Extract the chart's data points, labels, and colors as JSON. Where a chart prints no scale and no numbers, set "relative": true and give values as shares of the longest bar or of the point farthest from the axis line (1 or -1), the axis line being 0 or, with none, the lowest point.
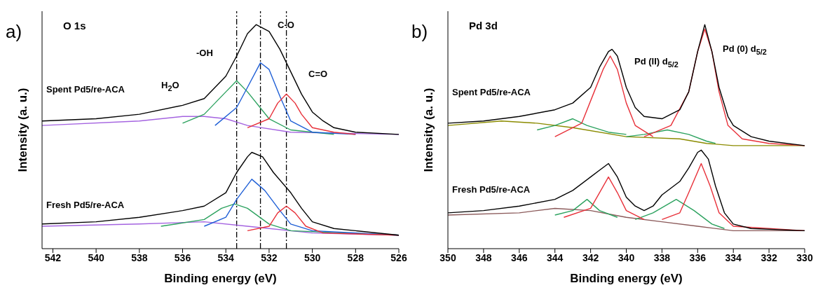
{
  "chart_data": [
    {
      "type": "line",
      "title": "O 1s",
      "xlabel": "Binding energy (eV)",
      "ylabel": "Intensity (a. u.)",
      "relative": true,
      "xlim": [
        542.5,
        526
      ],
      "xticks": [
        542,
        540,
        538,
        536,
        534,
        532,
        530,
        528,
        526
      ],
      "annotations": [
        "a)",
        "Spent Pd5/re-ACA",
        "Fresh Pd5/re-ACA",
        "-OH",
        "C-O",
        "C=O",
        "H$_{2}$O"
      ],
      "ref_lines": [
        {
          "axis": "x",
          "value": 533.5,
          "line_style": "dashed",
          "color": "#000000"
        },
        {
          "axis": "x",
          "value": 532.4,
          "line_style": "dashed",
          "color": "#000000"
        },
        {
          "axis": "x",
          "value": 531.2,
          "line_style": "dashed",
          "color": "#000000"
        }
      ],
      "series": [
        {
          "color": "#a463e0",
          "x": [
            542.5,
            538,
            536,
            535,
            534,
            533,
            531,
            526
          ],
          "values": [
            0.55,
            0.57,
            0.59,
            0.59,
            0.58,
            0.55,
            0.52,
            0.51
          ]
        },
        {
          "color": "#2ca25f",
          "x": [
            536,
            535,
            534,
            533.5,
            533,
            532,
            531,
            529
          ],
          "values": [
            0.56,
            0.6,
            0.7,
            0.75,
            0.7,
            0.58,
            0.53,
            0.51
          ]
        },
        {
          "color": "#1f5fd6",
          "x": [
            534.5,
            533.5,
            533,
            532.4,
            532,
            531.5,
            531,
            530,
            528
          ],
          "values": [
            0.55,
            0.63,
            0.72,
            0.83,
            0.8,
            0.68,
            0.57,
            0.52,
            0.51
          ]
        },
        {
          "color": "#e8313a",
          "x": [
            533,
            532,
            531.6,
            531.2,
            530.8,
            530.5,
            530,
            529,
            528
          ],
          "values": [
            0.54,
            0.58,
            0.65,
            0.69,
            0.65,
            0.6,
            0.54,
            0.52,
            0.51
          ]
        },
        {
          "color": "#000000",
          "x": [
            542.5,
            540,
            538,
            536,
            535,
            534,
            533.5,
            533,
            532.6,
            532,
            531.5,
            531,
            530.5,
            530,
            529.5,
            529,
            528,
            526
          ],
          "values": [
            0.57,
            0.58,
            0.6,
            0.64,
            0.67,
            0.77,
            0.86,
            0.96,
            1.0,
            0.97,
            0.89,
            0.79,
            0.69,
            0.61,
            0.57,
            0.54,
            0.52,
            0.51
          ]
        },
        {
          "color": "#a463e0",
          "x": [
            542.5,
            538,
            535,
            533,
            530,
            526
          ],
          "values": [
            0.1,
            0.11,
            0.12,
            0.1,
            0.07,
            0.06
          ]
        },
        {
          "color": "#2ca25f",
          "x": [
            537,
            535,
            534.2,
            533.6,
            533,
            532,
            531,
            526
          ],
          "values": [
            0.1,
            0.13,
            0.18,
            0.2,
            0.18,
            0.11,
            0.08,
            0.06
          ]
        },
        {
          "color": "#1f5fd6",
          "x": [
            535,
            534,
            533.5,
            532.8,
            532.2,
            531.5,
            531,
            530,
            526
          ],
          "values": [
            0.1,
            0.14,
            0.22,
            0.31,
            0.26,
            0.17,
            0.11,
            0.08,
            0.06
          ]
        },
        {
          "color": "#e8313a",
          "x": [
            533,
            532,
            531.6,
            531.2,
            530.8,
            530.3,
            529.5,
            526
          ],
          "values": [
            0.08,
            0.1,
            0.16,
            0.19,
            0.16,
            0.1,
            0.07,
            0.06
          ]
        },
        {
          "color": "#000000",
          "x": [
            542.5,
            540,
            538,
            536,
            535,
            534,
            533.5,
            533,
            532.8,
            532.3,
            531.8,
            531,
            530.5,
            530,
            529,
            528,
            526
          ],
          "values": [
            0.11,
            0.12,
            0.14,
            0.17,
            0.19,
            0.25,
            0.34,
            0.41,
            0.43,
            0.41,
            0.34,
            0.25,
            0.18,
            0.12,
            0.09,
            0.08,
            0.06
          ]
        }
      ]
    },
    {
      "type": "line",
      "title": "Pd 3d",
      "xlabel": "Binding energy (eV)",
      "ylabel": "Intensity (a. u.)",
      "relative": true,
      "xlim": [
        350,
        330
      ],
      "xticks": [
        350,
        348,
        346,
        344,
        342,
        340,
        338,
        336,
        334,
        332,
        330
      ],
      "annotations": [
        "b)",
        "Spent Pd5/re-ACA",
        "Fresh Pd5/re-ACA",
        "Pd (II) d$_{5/2}$",
        "Pd (0) d$_{5/2}$"
      ],
      "series": [
        {
          "color": "#8b8b00",
          "x": [
            350,
            347,
            345,
            343,
            340,
            337,
            335.5,
            334,
            330
          ],
          "values": [
            0.55,
            0.57,
            0.56,
            0.54,
            0.5,
            0.49,
            0.47,
            0.46,
            0.46
          ]
        },
        {
          "color": "#2ca25f",
          "x": [
            345,
            344,
            343,
            342.2,
            341,
            340
          ],
          "values": [
            0.53,
            0.55,
            0.58,
            0.55,
            0.52,
            0.51
          ]
        },
        {
          "color": "#2ca25f",
          "x": [
            340,
            339,
            337.7,
            336.5,
            335.5,
            335
          ],
          "values": [
            0.5,
            0.51,
            0.53,
            0.51,
            0.48,
            0.47
          ]
        },
        {
          "color": "#e8313a",
          "x": [
            344,
            342.5,
            341.8,
            341.3,
            340.9,
            340.5,
            340,
            339.5,
            338.5
          ],
          "values": [
            0.5,
            0.56,
            0.7,
            0.8,
            0.86,
            0.8,
            0.65,
            0.55,
            0.5
          ]
        },
        {
          "color": "#e8313a",
          "x": [
            339,
            337.5,
            336.5,
            336,
            335.6,
            335.2,
            334.8,
            334.3,
            333.5,
            332,
            330
          ],
          "values": [
            0.5,
            0.55,
            0.7,
            0.88,
            0.98,
            0.88,
            0.7,
            0.55,
            0.49,
            0.47,
            0.46
          ]
        },
        {
          "color": "#000000",
          "x": [
            350,
            348,
            346,
            344,
            343,
            342,
            341.5,
            341,
            340.8,
            340.5,
            340,
            339.5,
            339,
            338,
            337,
            336.5,
            336,
            335.6,
            335.2,
            334.8,
            334.3,
            334,
            333,
            332,
            330
          ],
          "values": [
            0.56,
            0.57,
            0.59,
            0.62,
            0.65,
            0.72,
            0.81,
            0.88,
            0.89,
            0.86,
            0.72,
            0.63,
            0.59,
            0.58,
            0.62,
            0.7,
            0.88,
            1.0,
            0.88,
            0.72,
            0.59,
            0.55,
            0.5,
            0.48,
            0.46
          ]
        },
        {
          "color": "#8b5a5a",
          "x": [
            350,
            346,
            344,
            342,
            340,
            338,
            336,
            334,
            330
          ],
          "values": [
            0.15,
            0.16,
            0.18,
            0.17,
            0.14,
            0.12,
            0.1,
            0.08,
            0.08
          ]
        },
        {
          "color": "#2ca25f",
          "x": [
            344,
            343,
            342.2,
            341.5,
            340.5
          ],
          "values": [
            0.15,
            0.17,
            0.22,
            0.17,
            0.14
          ]
        },
        {
          "color": "#2ca25f",
          "x": [
            339.5,
            338.5,
            337.2,
            336.2,
            335.2,
            334.5
          ],
          "values": [
            0.13,
            0.16,
            0.22,
            0.17,
            0.11,
            0.09
          ]
        },
        {
          "color": "#e8313a",
          "x": [
            343.5,
            342,
            341.5,
            341,
            340.5,
            340,
            339
          ],
          "values": [
            0.14,
            0.18,
            0.25,
            0.32,
            0.25,
            0.17,
            0.13
          ]
        },
        {
          "color": "#e8313a",
          "x": [
            338,
            337,
            336.5,
            335.8,
            335.3,
            334.8,
            334,
            330
          ],
          "values": [
            0.13,
            0.16,
            0.25,
            0.38,
            0.28,
            0.16,
            0.1,
            0.08
          ]
        },
        {
          "color": "#000000",
          "x": [
            350,
            348,
            346,
            344,
            343,
            342,
            341.5,
            341,
            340.5,
            340,
            339.5,
            339,
            338.5,
            338,
            337,
            336.5,
            336,
            335.8,
            335.4,
            335,
            334.5,
            334,
            333,
            330
          ],
          "values": [
            0.16,
            0.17,
            0.19,
            0.22,
            0.26,
            0.32,
            0.35,
            0.38,
            0.32,
            0.23,
            0.19,
            0.17,
            0.19,
            0.24,
            0.3,
            0.36,
            0.43,
            0.44,
            0.4,
            0.28,
            0.16,
            0.11,
            0.09,
            0.08
          ]
        }
      ]
    }
  ]
}
